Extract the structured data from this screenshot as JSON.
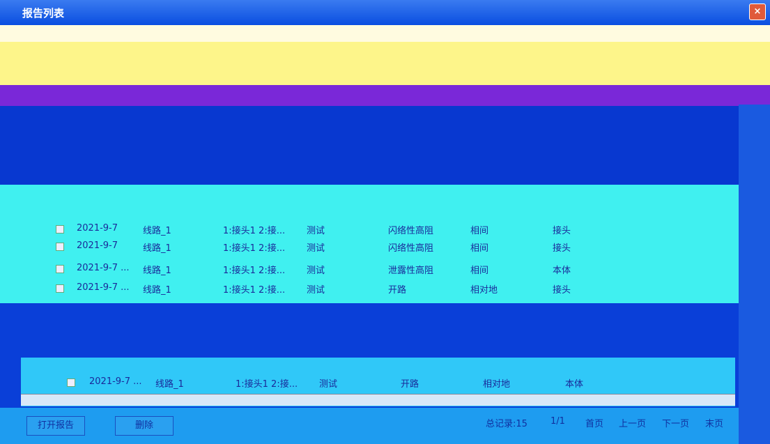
{
  "window": {
    "title": "报告列表"
  },
  "table": {
    "rows": [
      [
        "2021-9-7",
        "线路_1",
        "1:接头1 2:接...",
        "测试",
        "闪络性高阻",
        "相间",
        "接头"
      ],
      [
        "2021-9-7",
        "线路_1",
        "1:接头1 2:接...",
        "测试",
        "闪络性高阻",
        "相间",
        "接头"
      ],
      [
        "2021-9-7 ...",
        "线路_1",
        "1:接头1 2:接...",
        "测试",
        "泄露性高阻",
        "相间",
        "本体"
      ],
      [
        "2021-9-7 ...",
        "线路_1",
        "1:接头1 2:接...",
        "测试",
        "开路",
        "相对地",
        "接头"
      ],
      [
        "2021-9-7 ...",
        "线路_1",
        "1:接头1 2:接...",
        "测试",
        "开路",
        "相对地",
        "本体"
      ]
    ]
  },
  "footer": {
    "open_button": "打开报告",
    "delete_button": "删除",
    "total": "总记录:15",
    "page": "1/1",
    "first": "首页",
    "prev": "上一页",
    "next": "下一页",
    "last": "末页"
  }
}
